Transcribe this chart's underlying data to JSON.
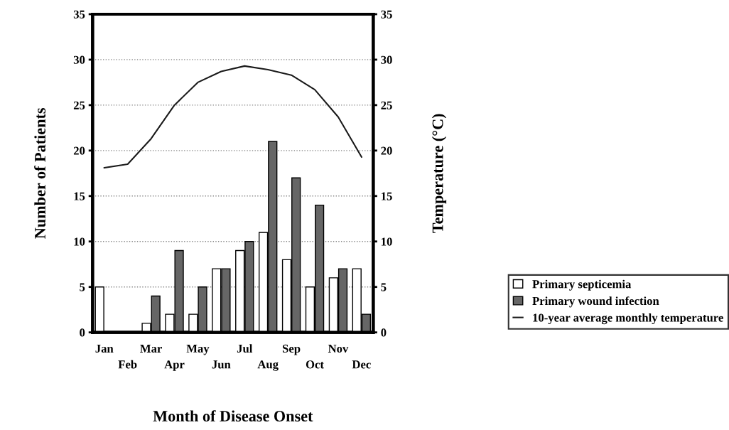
{
  "chart_data": {
    "type": "bar",
    "xlabel": "Month of Disease Onset",
    "ylabel": "Number of Patients",
    "y2label": "Temperature (°C)",
    "categories": [
      "Jan",
      "Feb",
      "Mar",
      "Apr",
      "May",
      "Jun",
      "Jul",
      "Aug",
      "Sep",
      "Oct",
      "Nov",
      "Dec"
    ],
    "series": [
      {
        "name": "Primary septicemia",
        "color": "#ffffff",
        "values": [
          5,
          0,
          1,
          2,
          2,
          7,
          9,
          11,
          8,
          5,
          6,
          7
        ]
      },
      {
        "name": "Primary wound infection",
        "color": "#666666",
        "values": [
          0,
          0,
          4,
          9,
          5,
          7,
          10,
          21,
          17,
          14,
          7,
          2
        ]
      },
      {
        "name": "10-year average monthly temperature",
        "type": "line",
        "axis": "y2",
        "color": "#1a1a1a",
        "values": [
          18.1,
          18.5,
          21.3,
          25,
          27.5,
          28.7,
          29.3,
          28.9,
          28.3,
          26.7,
          23.7,
          19.3
        ]
      }
    ],
    "ylim": [
      0,
      35
    ],
    "yticks": [
      0,
      5,
      10,
      15,
      20,
      25,
      30,
      35
    ],
    "y2lim": [
      0,
      35
    ],
    "y2ticks": [
      0,
      5,
      10,
      15,
      20,
      25,
      30,
      35
    ],
    "grid": "y",
    "legend": "bottom right",
    "marker": "none",
    "line_style": "solid"
  }
}
